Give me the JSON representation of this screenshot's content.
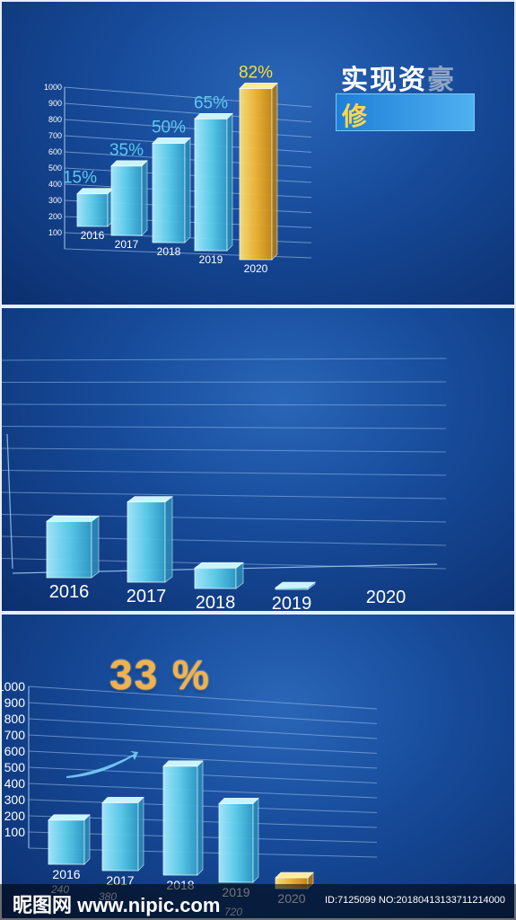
{
  "title": {
    "line1_main": "实现资",
    "line1_dim": "豪",
    "line2": "修"
  },
  "watermark": {
    "logo": "昵图网 www.nipic.com",
    "id": "ID:7125099 NO:20180413133711214000"
  },
  "colors": {
    "bar_blue": "#5fd0ec",
    "bar_gold": "#f2b631",
    "grid": "#8fb4e0",
    "pct_blue": "#5fc8f0",
    "pct_gold": "#ffd84a"
  },
  "chart_data": [
    {
      "type": "bar",
      "categories": [
        "2016",
        "2017",
        "2018",
        "2019",
        "2020"
      ],
      "values": [
        150,
        350,
        500,
        650,
        820
      ],
      "data_labels": [
        "15%",
        "35%",
        "50%",
        "65%",
        "82%"
      ],
      "y_ticks": [
        "100",
        "200",
        "300",
        "400",
        "500",
        "600",
        "700",
        "800",
        "900",
        "1000"
      ],
      "ylim": [
        0,
        1000
      ],
      "highlight_index": 4,
      "grid": true
    },
    {
      "type": "bar",
      "categories": [
        "2016",
        "2017",
        "2018",
        "2019",
        "2020"
      ],
      "values": [
        330,
        470,
        120,
        10,
        0
      ],
      "ylim": [
        0,
        1000
      ],
      "grid": true
    },
    {
      "type": "bar",
      "categories": [
        "2016",
        "2017",
        "2018",
        "2019",
        "2020"
      ],
      "values": [
        180,
        290,
        480,
        340,
        50
      ],
      "y_ticks": [
        "100",
        "200",
        "300",
        "400",
        "500",
        "600",
        "700",
        "800",
        "900",
        "1000"
      ],
      "ylim": [
        0,
        1000
      ],
      "highlight_index": 4,
      "annotation": "33 %",
      "footer_values": [
        "240",
        "380",
        "720"
      ],
      "grid": true
    }
  ]
}
